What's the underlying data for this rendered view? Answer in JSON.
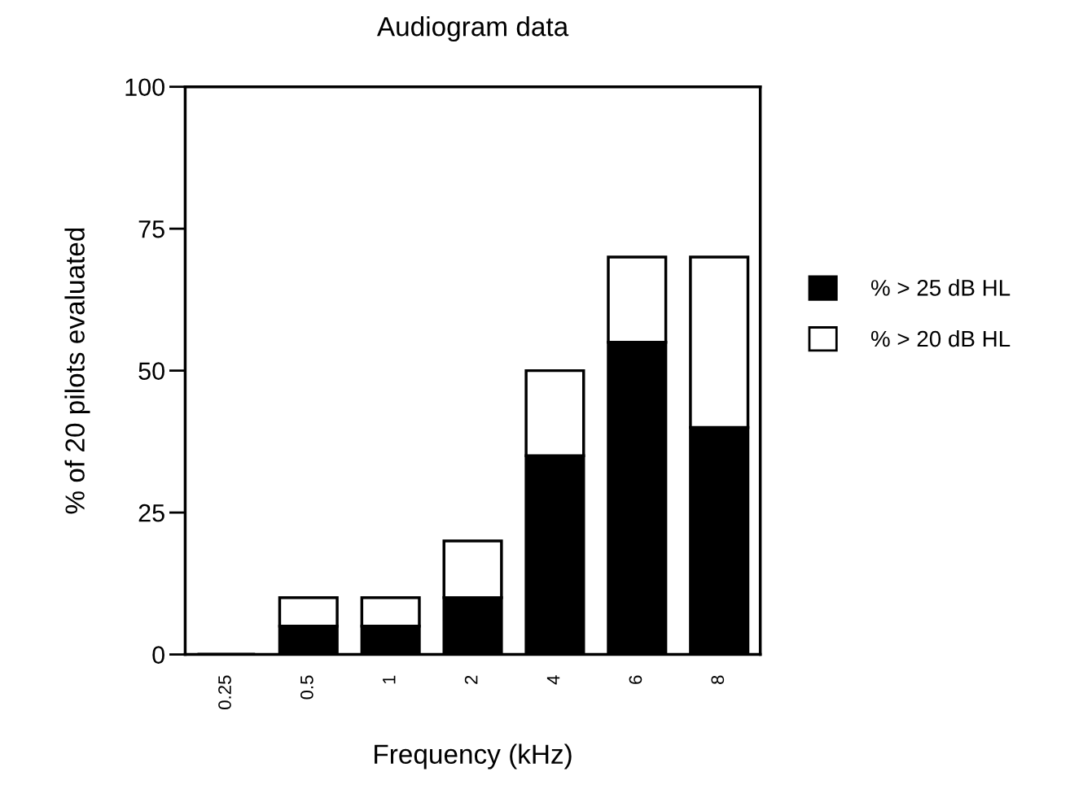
{
  "chart_data": {
    "type": "bar",
    "title": "Audiogram data",
    "xlabel": "Frequency (kHz)",
    "ylabel": "% of 20 pilots evaluated",
    "categories": [
      "0.25",
      "0.5",
      "1",
      "2",
      "4",
      "6",
      "8"
    ],
    "series": [
      {
        "name": "% > 25 dB HL",
        "color": "#000000",
        "values": [
          0,
          5,
          5,
          10,
          35,
          55,
          40
        ]
      },
      {
        "name": "% > 20 dB HL",
        "color": "#ffffff",
        "values": [
          0,
          5,
          5,
          10,
          15,
          15,
          30
        ]
      }
    ],
    "stacked": true,
    "ylim": [
      0,
      100
    ],
    "yticks": [
      0,
      25,
      50,
      75,
      100
    ],
    "grid": false,
    "legend": "right"
  }
}
